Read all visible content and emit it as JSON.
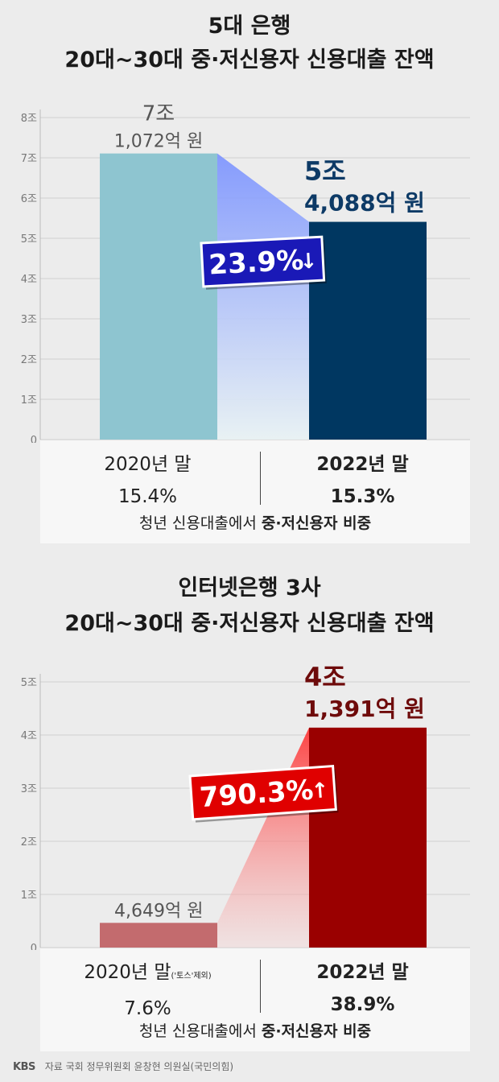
{
  "chart_data": [
    {
      "type": "bar",
      "title": "5대 은행",
      "subtitle": "20대~30대 중·저신용자 신용대출 잔액",
      "categories": [
        "2020년 말",
        "2022년 말"
      ],
      "values": [
        7.1072,
        5.4088
      ],
      "value_labels": [
        [
          "7조",
          "1,072억 원"
        ],
        [
          "5조",
          "4,088억 원"
        ]
      ],
      "yticks": [
        "8조",
        "7조",
        "6조",
        "5조",
        "4조",
        "3조",
        "2조",
        "1조",
        "0"
      ],
      "ylim": [
        0,
        8
      ],
      "change_label": "23.9%",
      "change_direction": "down",
      "colors": {
        "bar_2020": "#8ec5d0",
        "bar_2022": "#003761",
        "label_2022": "#0d3a66",
        "badge": "#1a19b7"
      },
      "share_caption": "청년 신용대출에서",
      "share_caption_bold": "중·저신용자 비중",
      "share_values": [
        "15.4%",
        "15.3%"
      ]
    },
    {
      "type": "bar",
      "title": "인터넷은행 3사",
      "subtitle": "20대~30대 중·저신용자 신용대출 잔액",
      "categories": [
        "2020년 말",
        "2022년 말"
      ],
      "category_note": "('토스'제외)",
      "values": [
        0.4649,
        4.1391
      ],
      "value_labels": [
        [
          "4,649억 원"
        ],
        [
          "4조",
          "1,391억 원"
        ]
      ],
      "yticks": [
        "5조",
        "4조",
        "3조",
        "2조",
        "1조",
        "0"
      ],
      "ylim": [
        0,
        5
      ],
      "change_label": "790.3%",
      "change_direction": "up",
      "colors": {
        "bar_2020": "#c36b6e",
        "bar_2022": "#9a0000",
        "label_2022": "#6e0b0b",
        "badge": "#e00000"
      },
      "share_caption": "청년 신용대출에서",
      "share_caption_bold": "중·저신용자 비중",
      "share_values": [
        "7.6%",
        "38.9%"
      ]
    }
  ],
  "footer": {
    "logo": "KBS",
    "source": "자료 국회 정무위원회 윤창현 의원실(국민의힘)"
  }
}
